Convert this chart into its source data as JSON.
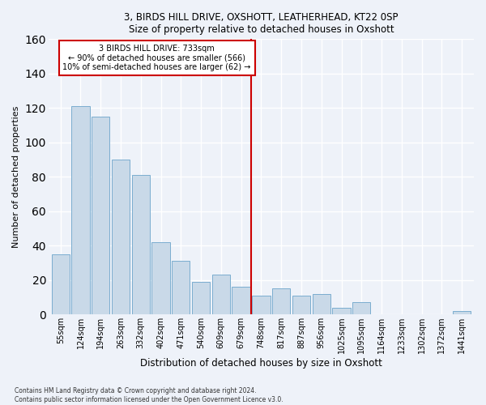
{
  "title1": "3, BIRDS HILL DRIVE, OXSHOTT, LEATHERHEAD, KT22 0SP",
  "title2": "Size of property relative to detached houses in Oxshott",
  "xlabel": "Distribution of detached houses by size in Oxshott",
  "ylabel": "Number of detached properties",
  "footnote1": "Contains HM Land Registry data © Crown copyright and database right 2024.",
  "footnote2": "Contains public sector information licensed under the Open Government Licence v3.0.",
  "bar_labels": [
    "55sqm",
    "124sqm",
    "194sqm",
    "263sqm",
    "332sqm",
    "402sqm",
    "471sqm",
    "540sqm",
    "609sqm",
    "679sqm",
    "748sqm",
    "817sqm",
    "887sqm",
    "956sqm",
    "1025sqm",
    "1095sqm",
    "1164sqm",
    "1233sqm",
    "1302sqm",
    "1372sqm",
    "1441sqm"
  ],
  "bar_values": [
    35,
    121,
    115,
    90,
    81,
    42,
    31,
    19,
    23,
    16,
    11,
    15,
    11,
    12,
    4,
    7,
    0,
    0,
    0,
    0,
    2
  ],
  "bar_color": "#c9d9e8",
  "bar_edgecolor": "#7aadcf",
  "vline_color": "#cc0000",
  "annotation_text": "3 BIRDS HILL DRIVE: 733sqm\n← 90% of detached houses are smaller (566)\n10% of semi-detached houses are larger (62) →",
  "annotation_box_color": "#cc0000",
  "background_color": "#eef2f9",
  "grid_color": "#ffffff",
  "ylim": [
    0,
    160
  ],
  "yticks": [
    0,
    20,
    40,
    60,
    80,
    100,
    120,
    140,
    160
  ]
}
